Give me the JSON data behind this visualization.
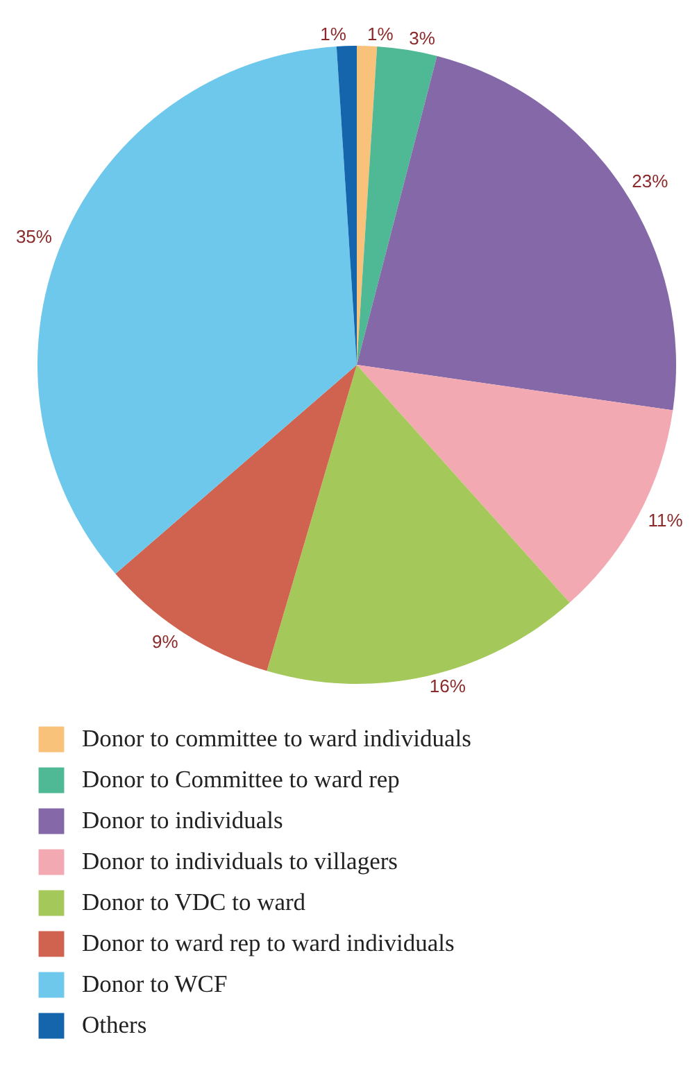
{
  "chart_data": {
    "type": "pie",
    "categories": [
      "Donor to committee to ward individuals",
      "Donor to Committee to ward rep",
      "Donor to individuals",
      "Donor to individuals to villagers",
      "Donor to VDC to ward",
      "Donor to ward rep to ward individuals",
      "Donor to WCF",
      "Others"
    ],
    "values": [
      1,
      3,
      23,
      11,
      16,
      9,
      35,
      1
    ],
    "value_labels": [
      "1%",
      "3%",
      "23%",
      "11%",
      "16%",
      "9%",
      "35%",
      "1%"
    ],
    "colors": [
      "#f9c27b",
      "#4fb894",
      "#8468a8",
      "#f2a9b1",
      "#a5c85a",
      "#d0634f",
      "#6ec8ec",
      "#1565ad"
    ],
    "legend": "bottom"
  }
}
